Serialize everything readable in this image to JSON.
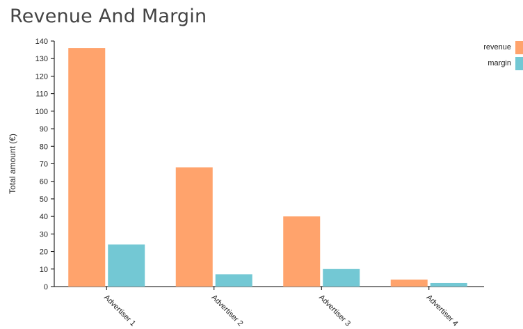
{
  "chart_data": {
    "type": "bar",
    "title": "Revenue And Margin",
    "ylabel": "Total amount (€)",
    "xlabel": "",
    "categories": [
      "Advertiser 1",
      "Advertiser 2",
      "Advertiser 3",
      "Advertiser 4"
    ],
    "series": [
      {
        "name": "revenue",
        "color": "#ffa36c",
        "values": [
          136,
          68,
          40,
          4
        ]
      },
      {
        "name": "margin",
        "color": "#73c8d4",
        "values": [
          24,
          7,
          10,
          2
        ]
      }
    ],
    "ylim": [
      0,
      140
    ],
    "yticks": [
      0,
      10,
      20,
      30,
      40,
      50,
      60,
      70,
      80,
      90,
      100,
      110,
      120,
      130,
      140
    ],
    "grid": false,
    "legend_position": "top-right"
  }
}
